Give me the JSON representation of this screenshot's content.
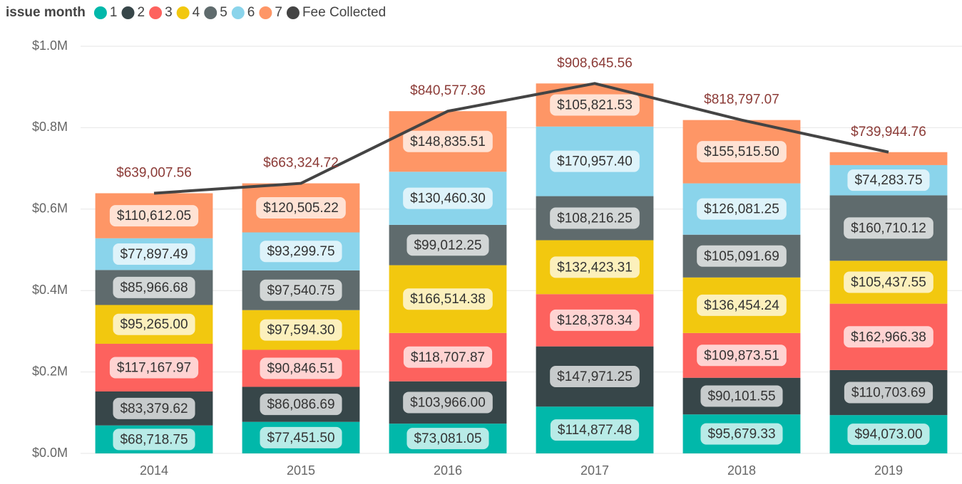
{
  "chart_data": {
    "type": "bar",
    "stacked": true,
    "legend_title": "issue month",
    "legend_position": "top-left",
    "categories": [
      "2014",
      "2015",
      "2016",
      "2017",
      "2018",
      "2019"
    ],
    "ylim": [
      0,
      1000000
    ],
    "yticks": [
      {
        "value": 0,
        "label": "$0.0M"
      },
      {
        "value": 200000,
        "label": "$0.2M"
      },
      {
        "value": 400000,
        "label": "$0.4M"
      },
      {
        "value": 600000,
        "label": "$0.6M"
      },
      {
        "value": 800000,
        "label": "$0.8M"
      },
      {
        "value": 1000000,
        "label": "$1.0M"
      }
    ],
    "grid": true,
    "series": [
      {
        "name": "1",
        "color": "#01b8aa",
        "values": [
          68718.75,
          77451.5,
          73081.05,
          114877.48,
          95679.33,
          94073.0
        ],
        "value_labels": [
          "$68,718.75",
          "$77,451.50",
          "$73,081.05",
          "$114,877.48",
          "$95,679.33",
          "$94,073.00"
        ]
      },
      {
        "name": "2",
        "color": "#374649",
        "values": [
          83379.62,
          86086.69,
          103966.0,
          147971.25,
          90101.55,
          110703.69
        ],
        "value_labels": [
          "$83,379.62",
          "$86,086.69",
          "$103,966.00",
          "$147,971.25",
          "$90,101.55",
          "$110,703.69"
        ]
      },
      {
        "name": "3",
        "color": "#fd625e",
        "values": [
          117167.97,
          90846.51,
          118707.87,
          128378.34,
          109873.51,
          162966.38
        ],
        "value_labels": [
          "$117,167.97",
          "$90,846.51",
          "$118,707.87",
          "$128,378.34",
          "$109,873.51",
          "$162,966.38"
        ]
      },
      {
        "name": "4",
        "color": "#f2c80f",
        "values": [
          95265.0,
          97594.3,
          166514.38,
          132423.31,
          136454.24,
          105437.55
        ],
        "value_labels": [
          "$95,265.00",
          "$97,594.30",
          "$166,514.38",
          "$132,423.31",
          "$136,454.24",
          "$105,437.55"
        ]
      },
      {
        "name": "5",
        "color": "#5f6b6d",
        "values": [
          85966.68,
          97540.75,
          99012.25,
          108216.25,
          105091.69,
          160710.12
        ],
        "value_labels": [
          "$85,966.68",
          "$97,540.75",
          "$99,012.25",
          "$108,216.25",
          "$105,091.69",
          "$160,710.12"
        ]
      },
      {
        "name": "6",
        "color": "#8ad4eb",
        "values": [
          77897.49,
          93299.75,
          130460.3,
          170957.4,
          126081.25,
          74283.75
        ],
        "value_labels": [
          "$77,897.49",
          "$93,299.75",
          "$130,460.30",
          "$170,957.40",
          "$126,081.25",
          "$74,283.75"
        ]
      },
      {
        "name": "7",
        "color": "#fe9666",
        "values": [
          110612.05,
          120505.22,
          148835.51,
          105821.53,
          155515.5,
          31770.27
        ],
        "value_labels": [
          "$110,612.05",
          "$120,505.22",
          "$148,835.51",
          "$105,821.53",
          "$155,515.50",
          null
        ]
      },
      {
        "name": "Fee Collected",
        "type": "line",
        "color": "#444444",
        "label_color": "#8b3a36",
        "values": [
          639007.56,
          663324.72,
          840577.36,
          908645.56,
          818797.07,
          739944.76
        ],
        "value_labels": [
          "$639,007.56",
          "$663,324.72",
          "$840,577.36",
          "$908,645.56",
          "$818,797.07",
          "$739,944.76"
        ]
      }
    ]
  }
}
